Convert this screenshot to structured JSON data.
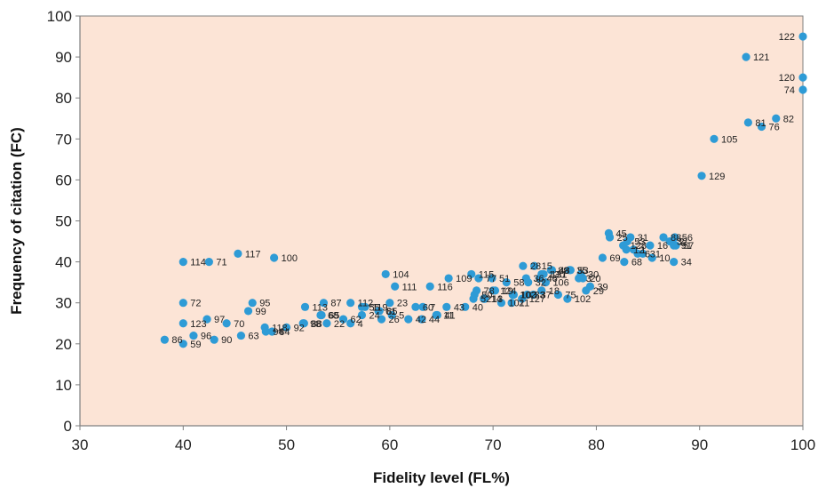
{
  "colors": {
    "plot_bg": "#FCE4D6",
    "marker": "#2E9BD6",
    "axis": "#7F7F7F"
  },
  "chart_data": {
    "type": "scatter",
    "title": "",
    "xlabel": "Fidelity level (FL%)",
    "ylabel": "Frequency of citation (FC)",
    "xlim": [
      30,
      100
    ],
    "ylim": [
      0,
      100
    ],
    "xticks": [
      30,
      40,
      50,
      60,
      70,
      80,
      90,
      100
    ],
    "yticks": [
      0,
      10,
      20,
      30,
      40,
      50,
      60,
      70,
      80,
      90,
      100
    ],
    "grid": false,
    "legend": "none",
    "points": [
      {
        "label": "122",
        "x": 100,
        "y": 95
      },
      {
        "label": "121",
        "x": 94.5,
        "y": 90
      },
      {
        "label": "120",
        "x": 100,
        "y": 85
      },
      {
        "label": "74",
        "x": 100,
        "y": 82
      },
      {
        "label": "82",
        "x": 97.4,
        "y": 75
      },
      {
        "label": "81",
        "x": 94.7,
        "y": 74
      },
      {
        "label": "76",
        "x": 96,
        "y": 73
      },
      {
        "label": "105",
        "x": 91.4,
        "y": 70
      },
      {
        "label": "129",
        "x": 90.2,
        "y": 61
      },
      {
        "label": "117",
        "x": 45.3,
        "y": 42
      },
      {
        "label": "100",
        "x": 48.8,
        "y": 41
      },
      {
        "label": "114",
        "x": 40,
        "y": 40
      },
      {
        "label": "71",
        "x": 42.5,
        "y": 40
      },
      {
        "label": "72",
        "x": 40,
        "y": 30
      },
      {
        "label": "95",
        "x": 46.7,
        "y": 30
      },
      {
        "label": "99",
        "x": 46.3,
        "y": 28
      },
      {
        "label": "97",
        "x": 42.3,
        "y": 26
      },
      {
        "label": "123",
        "x": 40,
        "y": 25
      },
      {
        "label": "70",
        "x": 44.2,
        "y": 25
      },
      {
        "label": "118",
        "x": 47.9,
        "y": 24
      },
      {
        "label": "96",
        "x": 41,
        "y": 22
      },
      {
        "label": "63",
        "x": 45.6,
        "y": 22
      },
      {
        "label": "90",
        "x": 43,
        "y": 21
      },
      {
        "label": "86",
        "x": 38.2,
        "y": 21
      },
      {
        "label": "59",
        "x": 40,
        "y": 20
      },
      {
        "label": "92",
        "x": 50,
        "y": 24
      },
      {
        "label": "84",
        "x": 48.6,
        "y": 23
      },
      {
        "label": "94",
        "x": 48,
        "y": 23
      },
      {
        "label": "113",
        "x": 51.8,
        "y": 29
      },
      {
        "label": "87",
        "x": 53.6,
        "y": 30
      },
      {
        "label": "112",
        "x": 56.2,
        "y": 30
      },
      {
        "label": "65",
        "x": 53.4,
        "y": 27
      },
      {
        "label": "68",
        "x": 53.3,
        "y": 27
      },
      {
        "label": "22",
        "x": 53.9,
        "y": 25
      },
      {
        "label": "88",
        "x": 51.7,
        "y": 25
      },
      {
        "label": "98",
        "x": 51.6,
        "y": 25
      },
      {
        "label": "62",
        "x": 55.5,
        "y": 26
      },
      {
        "label": "55",
        "x": 57.3,
        "y": 29
      },
      {
        "label": "119",
        "x": 57.6,
        "y": 29
      },
      {
        "label": "24",
        "x": 57.3,
        "y": 27
      },
      {
        "label": "4",
        "x": 56.2,
        "y": 25
      },
      {
        "label": "85",
        "x": 59,
        "y": 28
      },
      {
        "label": "61",
        "x": 58.9,
        "y": 28
      },
      {
        "label": "26",
        "x": 59.2,
        "y": 26
      },
      {
        "label": "23",
        "x": 60,
        "y": 30
      },
      {
        "label": "5",
        "x": 60.2,
        "y": 27
      },
      {
        "label": "42",
        "x": 61.8,
        "y": 26
      },
      {
        "label": "60",
        "x": 62.5,
        "y": 29
      },
      {
        "label": "104",
        "x": 59.6,
        "y": 37
      },
      {
        "label": "111",
        "x": 60.5,
        "y": 34
      },
      {
        "label": "116",
        "x": 63.9,
        "y": 34
      },
      {
        "label": "7",
        "x": 63.2,
        "y": 29
      },
      {
        "label": "44",
        "x": 63.1,
        "y": 26
      },
      {
        "label": "41",
        "x": 64.6,
        "y": 27
      },
      {
        "label": "11",
        "x": 64.5,
        "y": 27
      },
      {
        "label": "43",
        "x": 65.5,
        "y": 29
      },
      {
        "label": "40",
        "x": 67.3,
        "y": 29
      },
      {
        "label": "109",
        "x": 65.7,
        "y": 36
      },
      {
        "label": "115",
        "x": 67.9,
        "y": 37
      },
      {
        "label": "77",
        "x": 68.6,
        "y": 36
      },
      {
        "label": "78",
        "x": 68.4,
        "y": 33
      },
      {
        "label": "50",
        "x": 68.2,
        "y": 32
      },
      {
        "label": "52",
        "x": 68.1,
        "y": 31
      },
      {
        "label": "51",
        "x": 69.9,
        "y": 36
      },
      {
        "label": "19",
        "x": 70.2,
        "y": 33
      },
      {
        "label": "124",
        "x": 70,
        "y": 33
      },
      {
        "label": "14",
        "x": 69.1,
        "y": 31
      },
      {
        "label": "13",
        "x": 69.2,
        "y": 31
      },
      {
        "label": "101",
        "x": 70.8,
        "y": 30
      },
      {
        "label": "58",
        "x": 71.3,
        "y": 35
      },
      {
        "label": "21",
        "x": 71.8,
        "y": 30
      },
      {
        "label": "102",
        "x": 71.9,
        "y": 32
      },
      {
        "label": "103",
        "x": 72,
        "y": 32
      },
      {
        "label": "28",
        "x": 72.9,
        "y": 39
      },
      {
        "label": "15",
        "x": 74,
        "y": 39
      },
      {
        "label": "36",
        "x": 73.2,
        "y": 36
      },
      {
        "label": "32",
        "x": 73.4,
        "y": 35
      },
      {
        "label": "127",
        "x": 72.8,
        "y": 31
      },
      {
        "label": "37",
        "x": 73.9,
        "y": 32
      },
      {
        "label": "33",
        "x": 73.3,
        "y": 32
      },
      {
        "label": "46",
        "x": 74.5,
        "y": 36
      },
      {
        "label": "89",
        "x": 75.6,
        "y": 38
      },
      {
        "label": "48",
        "x": 75.7,
        "y": 38
      },
      {
        "label": "131",
        "x": 74.9,
        "y": 37
      },
      {
        "label": "130",
        "x": 74.7,
        "y": 37
      },
      {
        "label": "106",
        "x": 75.1,
        "y": 35
      },
      {
        "label": "18",
        "x": 74.7,
        "y": 33
      },
      {
        "label": "75",
        "x": 76.3,
        "y": 32
      },
      {
        "label": "35",
        "x": 77.4,
        "y": 38
      },
      {
        "label": "53",
        "x": 77.5,
        "y": 38
      },
      {
        "label": "30",
        "x": 78.5,
        "y": 37
      },
      {
        "label": "20",
        "x": 78.7,
        "y": 36
      },
      {
        "label": "3",
        "x": 78.3,
        "y": 36
      },
      {
        "label": "102b",
        "x": 77.2,
        "y": 31
      },
      {
        "label": "39",
        "x": 79.4,
        "y": 34
      },
      {
        "label": "29",
        "x": 79,
        "y": 33
      },
      {
        "label": "45",
        "x": 81.2,
        "y": 47
      },
      {
        "label": "25",
        "x": 81.3,
        "y": 46
      },
      {
        "label": "31",
        "x": 83.3,
        "y": 46
      },
      {
        "label": "53b",
        "x": 83,
        "y": 45
      },
      {
        "label": "128",
        "x": 82.6,
        "y": 44
      },
      {
        "label": "12",
        "x": 82.9,
        "y": 43
      },
      {
        "label": "16",
        "x": 85.2,
        "y": 44
      },
      {
        "label": "88b",
        "x": 86.5,
        "y": 46
      },
      {
        "label": "56",
        "x": 87.6,
        "y": 46
      },
      {
        "label": "32b",
        "x": 87.1,
        "y": 45
      },
      {
        "label": "2",
        "x": 87.3,
        "y": 45
      },
      {
        "label": "57",
        "x": 87.7,
        "y": 44
      },
      {
        "label": "91",
        "x": 87.5,
        "y": 44
      },
      {
        "label": "1",
        "x": 83.6,
        "y": 43
      },
      {
        "label": "6",
        "x": 84,
        "y": 42
      },
      {
        "label": "31b",
        "x": 84.5,
        "y": 42
      },
      {
        "label": "10",
        "x": 85.4,
        "y": 41
      },
      {
        "label": "69",
        "x": 80.6,
        "y": 41
      },
      {
        "label": "68b",
        "x": 82.7,
        "y": 40
      },
      {
        "label": "34",
        "x": 87.5,
        "y": 40
      }
    ]
  }
}
